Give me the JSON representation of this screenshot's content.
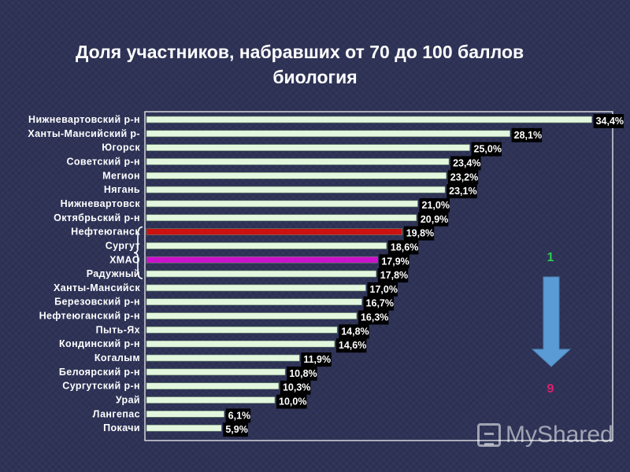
{
  "chart_data": {
    "type": "bar",
    "orientation": "horizontal",
    "title": "Доля участников, набравших от 70 до 100 баллов биология",
    "title_lines": [
      "Доля участников, набравших от 70 до 100 баллов",
      "биология"
    ],
    "categories": [
      "Нижневартовский р-н",
      "Ханты-Мансийский р-",
      "Югорск",
      "Советский р-н",
      "Мегион",
      "Нягань",
      "Нижневартовск",
      "Октябрьский р-н",
      "Нефтеюганск",
      "Сургут",
      "ХМАО",
      "Радужный",
      "Ханты-Мансийск",
      "Березовский р-н",
      "Нефтеюганский р-н",
      "Пыть-Ях",
      "Кондинский р-н",
      "Когалым",
      "Белоярский р-н",
      "Сургутский р-н",
      "Урай",
      "Лангепас",
      "Покачи"
    ],
    "values": [
      34.4,
      28.1,
      25.0,
      23.4,
      23.2,
      23.1,
      21.0,
      20.9,
      19.8,
      18.6,
      17.9,
      17.8,
      17.0,
      16.7,
      16.3,
      14.8,
      14.6,
      11.9,
      10.8,
      10.3,
      10.0,
      6.1,
      5.9
    ],
    "value_labels": [
      "34,4%",
      "28,1%",
      "25,0%",
      "23,4%",
      "23,2%",
      "23,1%",
      "21,0%",
      "20,9%",
      "19,8%",
      "18,6%",
      "17,9%",
      "17,8%",
      "17,0%",
      "16,7%",
      "16,3%",
      "14,8%",
      "14,6%",
      "11,9%",
      "10,8%",
      "10,3%",
      "10,0%",
      "6,1%",
      "5,9%"
    ],
    "highlight": {
      "Нефтеюганск": "#cc1111",
      "ХМАО": "#cc11cc"
    },
    "bar_color": "#e3f7df",
    "bar_edge_color": "#6b8a6b",
    "label_bg": "#000000",
    "xlim": [
      0,
      36
    ],
    "grid": false,
    "legend": "none"
  },
  "annotations": {
    "rank_top": "1",
    "rank_bottom": "9",
    "rank_top_color": "#2ecc55",
    "rank_bottom_color": "#e01e6e",
    "arrow_color": "#5b9bd5"
  },
  "watermark": "MyShared"
}
